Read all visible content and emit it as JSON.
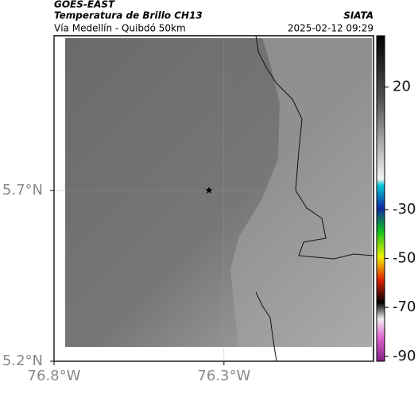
{
  "header": {
    "title": "GOES-EAST",
    "subtitle": "Temperatura de Brillo CH13",
    "region": "Vía Medellín - Quibdó 50km",
    "source": "SIATA",
    "datetime": "2025-02-12 09:29"
  },
  "map": {
    "xlim": [
      -76.8,
      -75.86
    ],
    "ylim": [
      5.2,
      6.153
    ],
    "xticks": [
      {
        "value": -76.8,
        "label": "76.8°W"
      },
      {
        "value": -76.3,
        "label": "76.3°W"
      }
    ],
    "yticks": [
      {
        "value": 5.2,
        "label": "5.2°N"
      },
      {
        "value": 5.7,
        "label": "5.7°N"
      }
    ],
    "grid": true,
    "marker": {
      "lon": -76.344,
      "lat": 5.7
    }
  },
  "colorbar": {
    "clim": [
      -92,
      41
    ],
    "ticks": [
      -90,
      -70,
      -50,
      -30,
      20
    ]
  }
}
